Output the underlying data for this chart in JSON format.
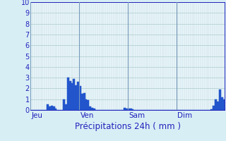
{
  "title": "Précipitations 24h ( mm )",
  "background_color": "#d8eef5",
  "plot_bg_color": "#e8f6fb",
  "bar_color": "#2255cc",
  "grid_color": "#aacccc",
  "grid_color_v": "#bbcccc",
  "axis_color": "#2222bb",
  "sep_color": "#7799bb",
  "ylim": [
    0,
    10
  ],
  "yticks": [
    0,
    1,
    2,
    3,
    4,
    5,
    6,
    7,
    8,
    9,
    10
  ],
  "day_labels": [
    "Jeu",
    "Ven",
    "Sam",
    "Dim"
  ],
  "n_hours": 96,
  "values": [
    0.0,
    0.0,
    0.0,
    0.0,
    0.0,
    0.0,
    0.0,
    0.0,
    0.5,
    0.3,
    0.4,
    0.3,
    0.1,
    0.0,
    0.0,
    0.0,
    1.0,
    0.5,
    3.0,
    2.7,
    2.5,
    2.9,
    2.3,
    2.6,
    2.2,
    1.5,
    1.6,
    1.0,
    0.9,
    0.3,
    0.2,
    0.1,
    0.0,
    0.0,
    0.0,
    0.0,
    0.0,
    0.0,
    0.0,
    0.0,
    0.0,
    0.0,
    0.0,
    0.0,
    0.0,
    0.0,
    0.2,
    0.15,
    0.1,
    0.1,
    0.05,
    0.0,
    0.0,
    0.0,
    0.0,
    0.0,
    0.0,
    0.0,
    0.0,
    0.0,
    0.0,
    0.0,
    0.0,
    0.0,
    0.0,
    0.0,
    0.0,
    0.0,
    0.0,
    0.0,
    0.0,
    0.0,
    0.0,
    0.0,
    0.0,
    0.0,
    0.0,
    0.0,
    0.0,
    0.0,
    0.0,
    0.0,
    0.0,
    0.0,
    0.0,
    0.0,
    0.0,
    0.0,
    0.0,
    0.05,
    0.4,
    1.0,
    0.8,
    1.9,
    1.2,
    1.0
  ]
}
